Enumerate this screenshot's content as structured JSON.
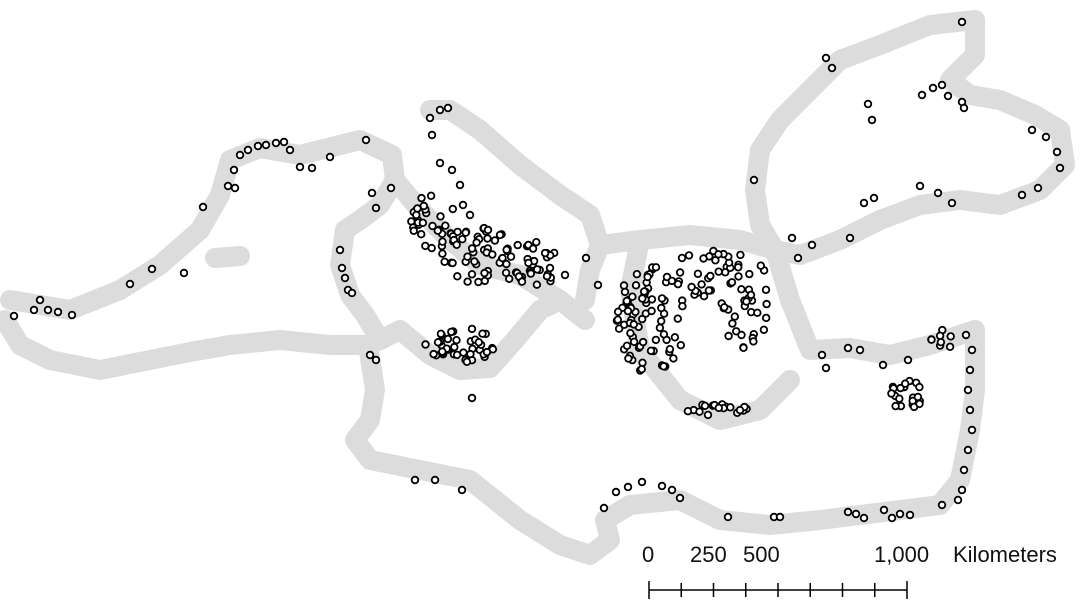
{
  "map": {
    "buffer_color": "#dcdcdc",
    "site_fill": "#ffffff",
    "site_stroke": "#000000"
  },
  "scale_bar": {
    "labels": [
      "0",
      "250",
      "500",
      "1,000"
    ],
    "unit": "Kilometers",
    "max_km": 1000,
    "minor_divisions": 8
  }
}
